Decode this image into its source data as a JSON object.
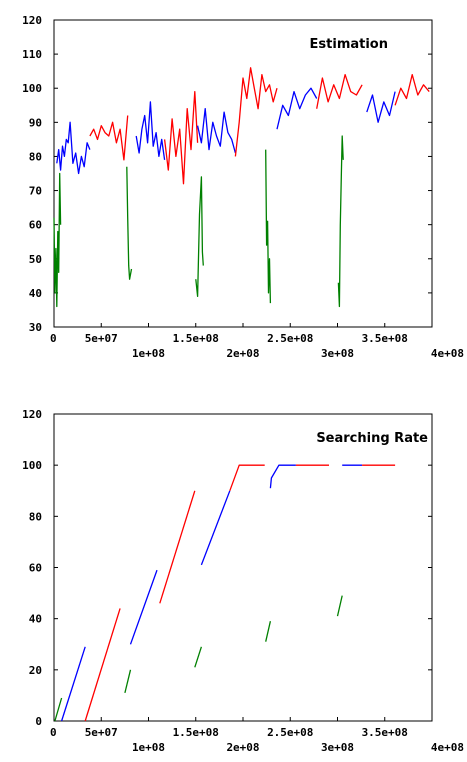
{
  "chart_data": [
    {
      "type": "line",
      "title": "Estimation",
      "xlabel": "",
      "ylabel": "",
      "xlim": [
        0,
        400000000
      ],
      "ylim": [
        30,
        120
      ],
      "grid": false,
      "legend": "none",
      "x_ticks_upper": [
        "0",
        "5e+07",
        "1.5e+08",
        "2.5e+08",
        "3.5e+08"
      ],
      "x_ticks_upper_values": [
        0,
        50000000,
        150000000,
        250000000,
        350000000
      ],
      "x_ticks_lower": [
        "1e+08",
        "2e+08",
        "3e+08",
        "4e+08"
      ],
      "x_ticks_lower_values": [
        100000000,
        200000000,
        300000000,
        400000000
      ],
      "y_ticks": [
        "30",
        "40",
        "50",
        "60",
        "70",
        "80",
        "90",
        "100",
        "110",
        "120"
      ],
      "y_tick_values": [
        30,
        40,
        50,
        60,
        70,
        80,
        90,
        100,
        110,
        120
      ],
      "series": [
        {
          "color": "#0000ff",
          "x": [
            3000000,
            5000000,
            7000000,
            9000000,
            11000000,
            13000000,
            15000000,
            17000000,
            20000000,
            23000000,
            26000000,
            29000000,
            32000000,
            35000000,
            38000000
          ],
          "values": [
            78,
            82,
            76,
            83,
            80,
            85,
            84,
            90,
            78,
            81,
            75,
            80,
            77,
            84,
            82
          ]
        },
        {
          "color": "#ff0000",
          "x": [
            38000000,
            42000000,
            46000000,
            50000000,
            54000000,
            58000000,
            62000000,
            66000000,
            70000000,
            74000000,
            78000000
          ],
          "values": [
            86,
            88,
            85,
            89,
            87,
            86,
            90,
            84,
            88,
            79,
            92
          ]
        },
        {
          "color": "#0000ff",
          "x": [
            87000000,
            90000000,
            93000000,
            96000000,
            99000000,
            102000000,
            105000000,
            108000000,
            111000000,
            114000000,
            117000000
          ],
          "values": [
            86,
            81,
            88,
            92,
            84,
            96,
            83,
            87,
            80,
            85,
            79
          ]
        },
        {
          "color": "#ff0000",
          "x": [
            117000000,
            121000000,
            125000000,
            129000000,
            133000000,
            137000000,
            141000000,
            145000000,
            149000000,
            152000000
          ],
          "values": [
            85,
            76,
            91,
            80,
            88,
            72,
            94,
            82,
            99,
            84
          ]
        },
        {
          "color": "#0000ff",
          "x": [
            152000000,
            156000000,
            160000000,
            164000000,
            168000000,
            172000000,
            176000000,
            180000000,
            184000000,
            188000000,
            192000000
          ],
          "values": [
            89,
            84,
            94,
            82,
            90,
            86,
            83,
            93,
            87,
            85,
            81
          ]
        },
        {
          "color": "#ff0000",
          "x": [
            192000000,
            196000000,
            200000000,
            204000000,
            208000000,
            212000000,
            216000000,
            220000000,
            224000000,
            228000000,
            232000000,
            236000000
          ],
          "values": [
            80,
            90,
            103,
            97,
            106,
            100,
            94,
            104,
            99,
            101,
            96,
            100
          ]
        },
        {
          "color": "#0000ff",
          "x": [
            236000000,
            242000000,
            248000000,
            254000000,
            260000000,
            266000000,
            272000000,
            278000000
          ],
          "values": [
            88,
            95,
            92,
            99,
            94,
            98,
            100,
            97
          ]
        },
        {
          "color": "#ff0000",
          "x": [
            278000000,
            284000000,
            290000000,
            296000000,
            302000000,
            308000000,
            314000000,
            320000000,
            326000000
          ],
          "values": [
            94,
            103,
            96,
            101,
            97,
            104,
            99,
            98,
            101
          ]
        },
        {
          "color": "#0000ff",
          "x": [
            331000000,
            337000000,
            343000000,
            349000000,
            355000000,
            361000000
          ],
          "values": [
            93,
            98,
            90,
            96,
            92,
            99
          ]
        },
        {
          "color": "#ff0000",
          "x": [
            361000000,
            367000000,
            373000000,
            379000000,
            385000000,
            391000000,
            397000000
          ],
          "values": [
            95,
            100,
            97,
            104,
            98,
            101,
            99
          ]
        },
        {
          "color": "#008000",
          "x": [
            0,
            1000000,
            2000000,
            3000000,
            4000000,
            5000000,
            6000000,
            7000000
          ],
          "values": [
            62,
            40,
            53,
            36,
            58,
            46,
            75,
            60
          ]
        },
        {
          "color": "#008000",
          "x": [
            77000000,
            78000000,
            79000000,
            80000000,
            82000000
          ],
          "values": [
            77,
            62,
            48,
            44,
            47
          ]
        },
        {
          "color": "#008000",
          "x": [
            150000000,
            152000000,
            154000000,
            156000000,
            157000000,
            158000000
          ],
          "values": [
            44,
            39,
            63,
            74,
            52,
            48
          ]
        },
        {
          "color": "#008000",
          "x": [
            224000000,
            225000000,
            226000000,
            227000000,
            228000000,
            229000000
          ],
          "values": [
            82,
            54,
            61,
            40,
            50,
            37
          ]
        },
        {
          "color": "#008000",
          "x": [
            301000000,
            302000000,
            303000000,
            304000000,
            305000000,
            306000000
          ],
          "values": [
            43,
            36,
            60,
            74,
            86,
            79
          ]
        }
      ]
    },
    {
      "type": "line",
      "title": "Searching Rate",
      "xlabel": "",
      "ylabel": "",
      "xlim": [
        0,
        400000000
      ],
      "ylim": [
        0,
        120
      ],
      "grid": false,
      "legend": "none",
      "x_ticks_upper": [
        "0",
        "5e+07",
        "1.5e+08",
        "2.5e+08",
        "3.5e+08"
      ],
      "x_ticks_upper_values": [
        0,
        50000000,
        150000000,
        250000000,
        350000000
      ],
      "x_ticks_lower": [
        "1e+08",
        "2e+08",
        "3e+08",
        "4e+08"
      ],
      "x_ticks_lower_values": [
        100000000,
        200000000,
        300000000,
        400000000
      ],
      "y_ticks": [
        "0",
        "20",
        "40",
        "60",
        "80",
        "100",
        "120"
      ],
      "y_tick_values": [
        0,
        20,
        40,
        60,
        80,
        100,
        120
      ],
      "series": [
        {
          "color": "#008000",
          "x": [
            1000000,
            8000000
          ],
          "values": [
            0,
            9
          ]
        },
        {
          "color": "#0000ff",
          "x": [
            8000000,
            33000000
          ],
          "values": [
            0,
            29
          ]
        },
        {
          "color": "#ff0000",
          "x": [
            33000000,
            70000000
          ],
          "values": [
            0,
            44
          ]
        },
        {
          "color": "#008000",
          "x": [
            75000000,
            81000000
          ],
          "values": [
            11,
            20
          ]
        },
        {
          "color": "#0000ff",
          "x": [
            81000000,
            109000000
          ],
          "values": [
            30,
            59
          ]
        },
        {
          "color": "#ff0000",
          "x": [
            112000000,
            149000000
          ],
          "values": [
            46,
            90
          ]
        },
        {
          "color": "#008000",
          "x": [
            149000000,
            156000000
          ],
          "values": [
            21,
            29
          ]
        },
        {
          "color": "#0000ff",
          "x": [
            156000000,
            186000000
          ],
          "values": [
            61,
            90
          ]
        },
        {
          "color": "#ff0000",
          "x": [
            186000000,
            196000000,
            223000000
          ],
          "values": [
            90,
            100,
            100
          ]
        },
        {
          "color": "#008000",
          "x": [
            224000000,
            229000000
          ],
          "values": [
            31,
            39
          ]
        },
        {
          "color": "#0000ff",
          "x": [
            229000000,
            230000000,
            238000000,
            256000000
          ],
          "values": [
            91,
            95,
            100,
            100
          ]
        },
        {
          "color": "#ff0000",
          "x": [
            256000000,
            291000000
          ],
          "values": [
            100,
            100
          ]
        },
        {
          "color": "#008000",
          "x": [
            300000000,
            305000000
          ],
          "values": [
            41,
            49
          ]
        },
        {
          "color": "#0000ff",
          "x": [
            305000000,
            326000000
          ],
          "values": [
            100,
            100
          ]
        },
        {
          "color": "#ff0000",
          "x": [
            326000000,
            361000000
          ],
          "values": [
            100,
            100
          ]
        }
      ]
    }
  ]
}
